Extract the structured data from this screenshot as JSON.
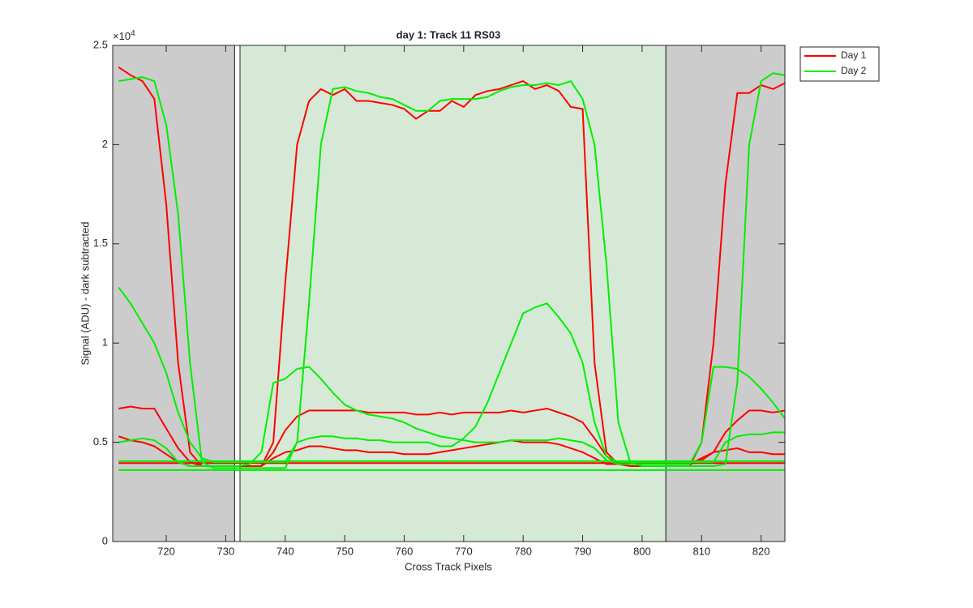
{
  "chart_data": {
    "type": "line",
    "title": "day 1: Track 11  RS03",
    "xlabel": "Cross Track Pixels",
    "ylabel": "Signal (ADU) - dark subtracted",
    "y_multiplier": {
      "base": "×10",
      "exponent": "4"
    },
    "xlim": [
      711,
      824
    ],
    "ylim": [
      0,
      25000
    ],
    "xticks": [
      720,
      730,
      740,
      750,
      760,
      770,
      780,
      790,
      800,
      810,
      820
    ],
    "yticks": [
      0,
      {
        "value": 5000,
        "label": "0.5"
      },
      {
        "value": 10000,
        "label": "1"
      },
      {
        "value": 15000,
        "label": "1.5"
      },
      {
        "value": 20000,
        "label": "2"
      },
      {
        "value": 25000,
        "label": "2.5"
      }
    ],
    "grid": false,
    "legend": "northeastoutside",
    "regions": [
      {
        "xlim": [
          711,
          731.5
        ],
        "color": "#cccccc"
      },
      {
        "xlim": [
          731.5,
          732.4
        ],
        "color": "#ffffff"
      },
      {
        "xlim": [
          732.4,
          804
        ],
        "color": "#d6e9d6"
      },
      {
        "xlim": [
          804,
          824
        ],
        "color": "#cccccc"
      }
    ],
    "x": [
      712,
      714,
      716,
      718,
      720,
      722,
      724,
      726,
      728,
      730,
      732,
      734,
      736,
      738,
      740,
      742,
      744,
      746,
      748,
      750,
      752,
      754,
      756,
      758,
      760,
      762,
      764,
      766,
      768,
      770,
      772,
      774,
      776,
      778,
      780,
      782,
      784,
      786,
      788,
      790,
      792,
      794,
      796,
      798,
      800,
      802,
      804,
      806,
      808,
      810,
      812,
      814,
      816,
      818,
      820,
      822,
      824
    ],
    "series": [
      {
        "name": "Day 1",
        "color": "#ff0000",
        "lines": [
          [
            23900,
            23500,
            23200,
            22300,
            17000,
            9000,
            4500,
            3800,
            3800,
            3800,
            3800,
            3800,
            3800,
            5000,
            13000,
            20000,
            22200,
            22800,
            22500,
            22800,
            22200,
            22200,
            22100,
            22000,
            21800,
            21300,
            21700,
            21700,
            22200,
            21900,
            22500,
            22700,
            22800,
            23000,
            23200,
            22800,
            23000,
            22700,
            21900,
            21800,
            9000,
            4500,
            3900,
            3800,
            3800,
            3800,
            3800,
            3800,
            3800,
            5000,
            10000,
            18000,
            22600,
            22600,
            23000,
            22800,
            23100
          ],
          [
            6700,
            6800,
            6700,
            6700,
            5700,
            4700,
            4000,
            3800,
            3800,
            3800,
            3800,
            3800,
            3800,
            4500,
            5600,
            6300,
            6600,
            6600,
            6600,
            6600,
            6600,
            6500,
            6500,
            6500,
            6500,
            6400,
            6400,
            6500,
            6400,
            6500,
            6500,
            6500,
            6500,
            6600,
            6500,
            6600,
            6700,
            6500,
            6300,
            6000,
            5200,
            4300,
            3900,
            3900,
            3900,
            3900,
            3900,
            3900,
            3900,
            4100,
            4500,
            5500,
            6100,
            6600,
            6600,
            6500,
            6600
          ],
          [
            5300,
            5100,
            5000,
            4800,
            4400,
            4000,
            3800,
            3800,
            3800,
            3800,
            3800,
            3800,
            3800,
            4200,
            4500,
            4600,
            4800,
            4800,
            4700,
            4600,
            4600,
            4500,
            4500,
            4500,
            4400,
            4400,
            4400,
            4500,
            4600,
            4700,
            4800,
            4900,
            5000,
            5100,
            5000,
            5000,
            5000,
            4900,
            4700,
            4500,
            4200,
            3900,
            3900,
            3900,
            3900,
            3900,
            3900,
            3900,
            3900,
            4200,
            4500,
            4600,
            4700,
            4500,
            4500,
            4400,
            4400
          ],
          [
            3950,
            3950,
            3950,
            3950,
            3950,
            3950,
            3950,
            3950,
            3950,
            3950,
            3950,
            3950,
            3950,
            3950,
            3950,
            3950,
            3950,
            3950,
            3950,
            3950,
            3950,
            3950,
            3950,
            3950,
            3950,
            3950,
            3950,
            3950,
            3950,
            3950,
            3950,
            3950,
            3950,
            3950,
            3950,
            3950,
            3950,
            3950,
            3950,
            3950,
            3950,
            3950,
            3950,
            3950,
            3950,
            3950,
            3950,
            3950,
            3950,
            3950,
            3950,
            3950,
            3950,
            3950,
            3950,
            3950,
            3950
          ]
        ]
      },
      {
        "name": "Day 2",
        "color": "#00ee00",
        "lines": [
          [
            23200,
            23300,
            23400,
            23200,
            21000,
            16500,
            9000,
            4000,
            3700,
            3700,
            3700,
            3700,
            3700,
            3700,
            3700,
            5000,
            12000,
            20000,
            22800,
            22900,
            22700,
            22600,
            22400,
            22300,
            22000,
            21700,
            21700,
            22200,
            22300,
            22300,
            22300,
            22400,
            22700,
            22900,
            23000,
            23000,
            23100,
            23000,
            23200,
            22300,
            20000,
            14000,
            6000,
            4000,
            3800,
            3800,
            3800,
            3800,
            3800,
            3800,
            3800,
            3900,
            8000,
            20000,
            23200,
            23600,
            23500
          ],
          [
            12800,
            12000,
            11000,
            10000,
            8500,
            6500,
            5000,
            4200,
            4000,
            4000,
            4000,
            4000,
            4000,
            4000,
            4000,
            5000,
            5200,
            5300,
            5300,
            5200,
            5200,
            5100,
            5100,
            5000,
            5000,
            5000,
            5000,
            4800,
            4800,
            5200,
            5800,
            7000,
            8500,
            10000,
            11500,
            11800,
            12000,
            11300,
            10500,
            9000,
            6000,
            4300,
            4000,
            4000,
            4000,
            4000,
            4000,
            4000,
            4000,
            4000,
            4000,
            5000,
            5300,
            5400,
            5400,
            5500,
            5500
          ],
          [
            5000,
            5100,
            5200,
            5100,
            4700,
            4000,
            3800,
            3800,
            3800,
            3800,
            3800,
            3900,
            4500,
            8000,
            8200,
            8700,
            8800,
            8200,
            7500,
            6900,
            6600,
            6400,
            6300,
            6200,
            6000,
            5700,
            5500,
            5300,
            5200,
            5100,
            5000,
            5000,
            5000,
            5100,
            5100,
            5100,
            5100,
            5200,
            5100,
            5000,
            4700,
            4100,
            3900,
            3900,
            3900,
            3900,
            3900,
            3900,
            3900,
            5000,
            8800,
            8800,
            8700,
            8300,
            7700,
            7000,
            6200
          ],
          [
            4050,
            4050,
            4050,
            4050,
            4050,
            4050,
            4050,
            4050,
            4050,
            4050,
            4050,
            4050,
            4050,
            4050,
            4050,
            4050,
            4050,
            4050,
            4050,
            4050,
            4050,
            4050,
            4050,
            4050,
            4050,
            4050,
            4050,
            4050,
            4050,
            4050,
            4050,
            4050,
            4050,
            4050,
            4050,
            4050,
            4050,
            4050,
            4050,
            4050,
            4050,
            4050,
            4050,
            4050,
            4050,
            4050,
            4050,
            4050,
            4050,
            4050,
            4050,
            4050,
            4050,
            4050,
            4050,
            4050,
            4050
          ],
          [
            3600,
            3600,
            3600,
            3600,
            3600,
            3600,
            3600,
            3600,
            3600,
            3600,
            3600,
            3600,
            3600,
            3600,
            3600,
            3600,
            3600,
            3600,
            3600,
            3600,
            3600,
            3600,
            3600,
            3600,
            3600,
            3600,
            3600,
            3600,
            3600,
            3600,
            3600,
            3600,
            3600,
            3600,
            3600,
            3600,
            3600,
            3600,
            3600,
            3600,
            3600,
            3600,
            3600,
            3600,
            3600,
            3600,
            3600,
            3600,
            3600,
            3600,
            3600,
            3600,
            3600,
            3600,
            3600,
            3600,
            3600
          ]
        ]
      }
    ]
  }
}
